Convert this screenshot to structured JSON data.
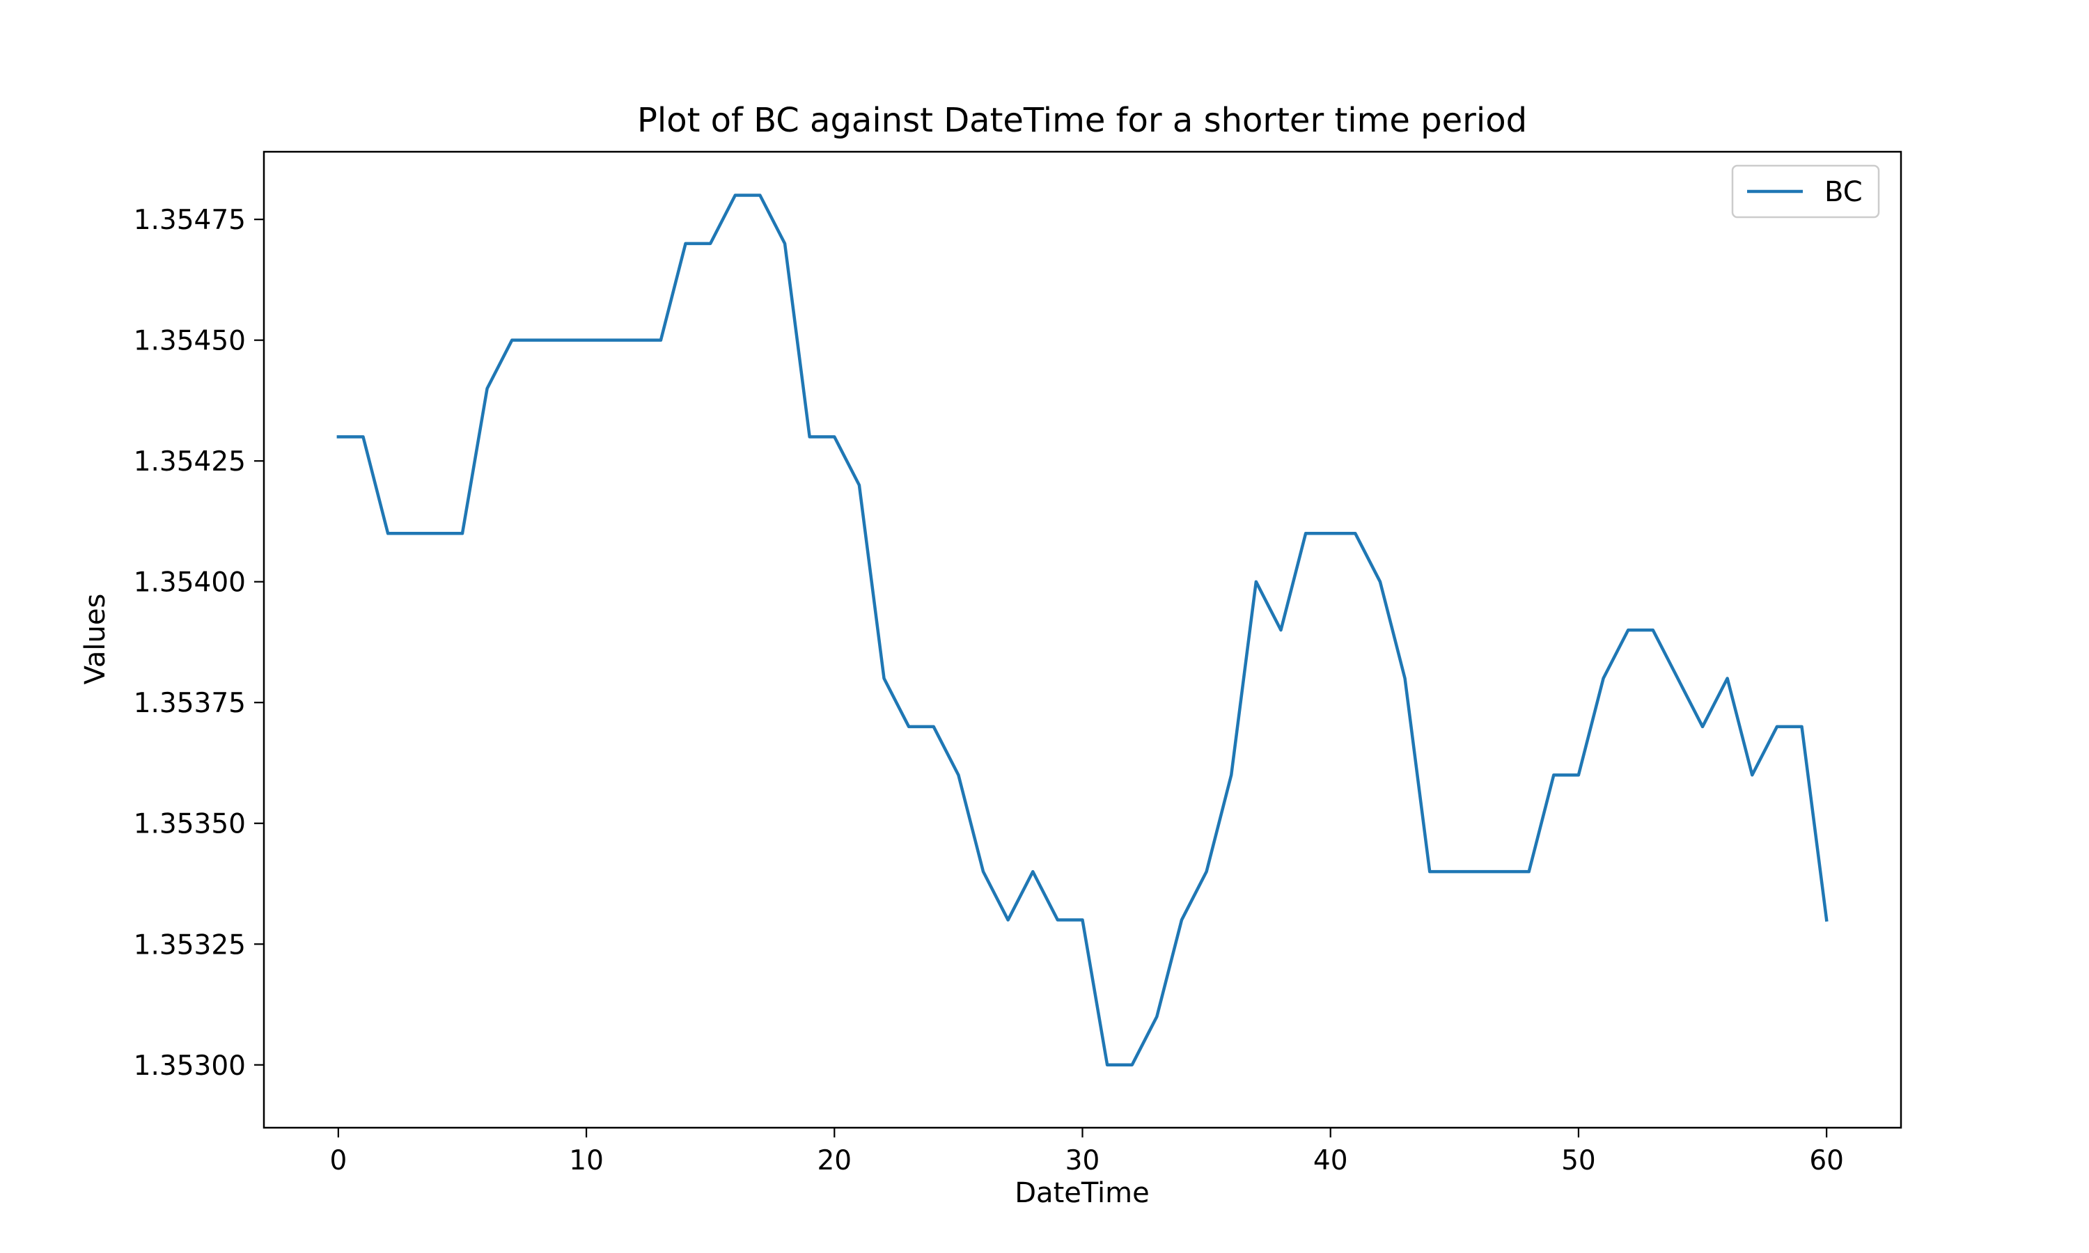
{
  "chart_data": {
    "type": "line",
    "title": "Plot of BC against DateTime for a shorter time period",
    "xlabel": "DateTime",
    "ylabel": "Values",
    "xlim": [
      -3,
      63
    ],
    "ylim": [
      1.35287,
      1.35489
    ],
    "xticks": [
      0,
      10,
      20,
      30,
      40,
      50,
      60
    ],
    "xtick_labels": [
      "0",
      "10",
      "20",
      "30",
      "40",
      "50",
      "60"
    ],
    "yticks": [
      1.353,
      1.35325,
      1.3535,
      1.35375,
      1.354,
      1.35425,
      1.3545,
      1.35475
    ],
    "ytick_labels": [
      "1.35300",
      "1.35325",
      "1.35350",
      "1.35375",
      "1.35400",
      "1.35425",
      "1.35450",
      "1.35475"
    ],
    "grid": false,
    "legend": {
      "position": "top-right",
      "entries": [
        "BC"
      ]
    },
    "series": [
      {
        "name": "BC",
        "color": "#1f77b4",
        "x": [
          0,
          1,
          2,
          3,
          4,
          5,
          6,
          7,
          8,
          9,
          10,
          11,
          12,
          13,
          14,
          15,
          16,
          17,
          18,
          19,
          20,
          21,
          22,
          23,
          24,
          25,
          26,
          27,
          28,
          29,
          30,
          31,
          32,
          33,
          34,
          35,
          36,
          37,
          38,
          39,
          40,
          41,
          42,
          43,
          44,
          45,
          46,
          47,
          48,
          49,
          50,
          51,
          52,
          53,
          54,
          55,
          56,
          57,
          58,
          59,
          60
        ],
        "values": [
          1.3543,
          1.3543,
          1.3541,
          1.3541,
          1.3541,
          1.3541,
          1.3544,
          1.3545,
          1.3545,
          1.3545,
          1.3545,
          1.3545,
          1.3545,
          1.3545,
          1.3547,
          1.3547,
          1.3548,
          1.3548,
          1.3547,
          1.3543,
          1.3543,
          1.3542,
          1.3538,
          1.3537,
          1.3537,
          1.3536,
          1.3534,
          1.3533,
          1.3534,
          1.3533,
          1.3533,
          1.353,
          1.353,
          1.3531,
          1.3533,
          1.3534,
          1.3536,
          1.354,
          1.3539,
          1.3541,
          1.3541,
          1.3541,
          1.354,
          1.3538,
          1.3534,
          1.3534,
          1.3534,
          1.3534,
          1.3534,
          1.3536,
          1.3536,
          1.3538,
          1.3539,
          1.3539,
          1.3538,
          1.3537,
          1.3538,
          1.3536,
          1.3537,
          1.3537,
          1.3533
        ]
      }
    ]
  }
}
